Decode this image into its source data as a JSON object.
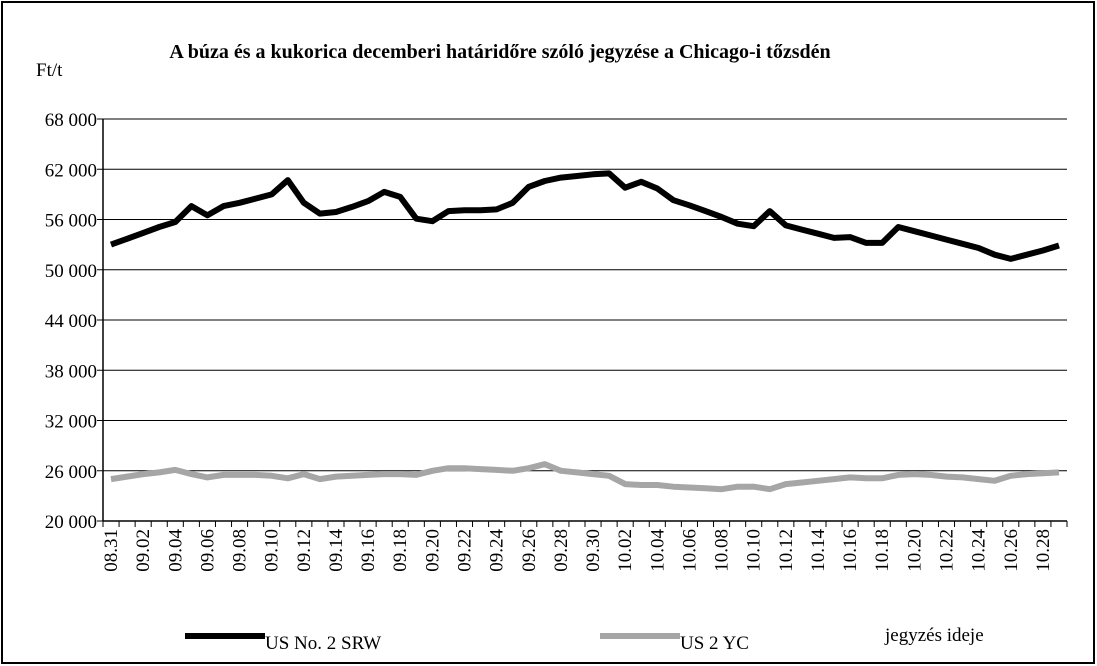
{
  "chart_data": {
    "type": "line",
    "title": "A búza és a kukorica decemberi határidőre szóló jegyzése a Chicago-i tőzsdén",
    "y_label": "Ft/t",
    "x_label": "jegyzés ideje",
    "categories": [
      "08.31",
      null,
      "09.02",
      null,
      "09.04",
      null,
      "09.06",
      null,
      "09.08",
      null,
      "09.10",
      null,
      "09.12",
      null,
      "09.14",
      null,
      "09.16",
      null,
      "09.18",
      null,
      "09.20",
      null,
      "09.22",
      null,
      "09.24",
      null,
      "09.26",
      null,
      "09.28",
      null,
      "09.30",
      null,
      "10.02",
      null,
      "10.04",
      null,
      "10.06",
      null,
      "10.08",
      null,
      "10.10",
      null,
      "10.12",
      null,
      "10.14",
      null,
      "10.16",
      null,
      "10.18",
      null,
      "10.20",
      null,
      "10.22",
      null,
      "10.24",
      null,
      "10.26",
      null,
      "10.28",
      null
    ],
    "series": [
      {
        "name": "US No. 2 SRW",
        "color": "#000000",
        "values": [
          53000,
          53700,
          54400,
          55100,
          55700,
          57600,
          56500,
          57600,
          58000,
          58500,
          59000,
          60700,
          58000,
          56700,
          56900,
          57500,
          58200,
          59300,
          58700,
          56100,
          55800,
          57000,
          57100,
          57100,
          57200,
          58000,
          59900,
          60600,
          61000,
          61200,
          61400,
          61500,
          59800,
          60500,
          59700,
          58300,
          57700,
          57000,
          56300,
          55500,
          55200,
          57000,
          55300,
          54800,
          54300,
          53800,
          53900,
          53200,
          53200,
          55100,
          54600,
          54100,
          53600,
          53100,
          52600,
          51800,
          51300,
          51800,
          52300,
          52900
        ]
      },
      {
        "name": "US 2 YC",
        "color": "#a6a6a6",
        "values": [
          25000,
          25300,
          25600,
          25800,
          26100,
          25600,
          25200,
          25500,
          25500,
          25500,
          25400,
          25100,
          25600,
          25000,
          25300,
          25400,
          25500,
          25600,
          25600,
          25500,
          26000,
          26300,
          26300,
          26200,
          26100,
          26000,
          26300,
          26800,
          26000,
          25800,
          25600,
          25400,
          24400,
          24300,
          24300,
          24100,
          24000,
          23900,
          23800,
          24100,
          24100,
          23800,
          24400,
          24600,
          24800,
          25000,
          25200,
          25100,
          25100,
          25500,
          25600,
          25500,
          25300,
          25200,
          25000,
          24800,
          25400,
          25600,
          25700,
          25800
        ]
      }
    ],
    "ylim": [
      20000,
      68000
    ],
    "yticks": [
      {
        "value": 20000,
        "label": "20 000"
      },
      {
        "value": 26000,
        "label": "26 000"
      },
      {
        "value": 32000,
        "label": "32 000"
      },
      {
        "value": 38000,
        "label": "38 000"
      },
      {
        "value": 44000,
        "label": "44 000"
      },
      {
        "value": 50000,
        "label": "50 000"
      },
      {
        "value": 56000,
        "label": "56 000"
      },
      {
        "value": 62000,
        "label": "62 000"
      },
      {
        "value": 68000,
        "label": "68 000"
      }
    ],
    "grid": true
  }
}
